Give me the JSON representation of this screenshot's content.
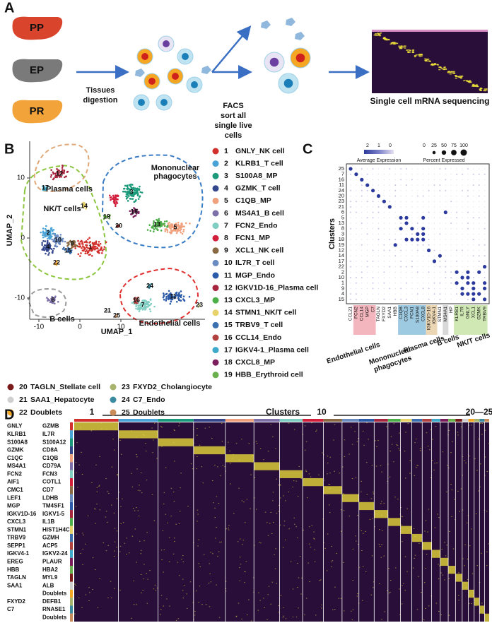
{
  "panel_a": {
    "label": "A",
    "organs": [
      "PP",
      "EP",
      "PR"
    ],
    "step1": [
      "Tissues",
      "digestion"
    ],
    "step2": [
      "FACS",
      "sort all",
      "single live",
      "cells"
    ],
    "step3": "Single cell mRNA sequencing"
  },
  "panel_b": {
    "label": "B",
    "xlabel": "UMAP_1",
    "ylabel": "UMAP_2",
    "xticks": [
      -10,
      0,
      10
    ],
    "yticks": [
      10,
      0,
      -10
    ],
    "regions": [
      [
        "Plasma cells"
      ],
      [
        "Mononuclear",
        "phagocytes"
      ],
      [
        "NK/T cells"
      ],
      [
        "B cells"
      ],
      [
        "Endothelial cells"
      ]
    ],
    "umap_labels": [
      12,
      17,
      14,
      2,
      10,
      4,
      15,
      9,
      22,
      1,
      3,
      18,
      13,
      5,
      19,
      20,
      6,
      16,
      24,
      7,
      11,
      21,
      25,
      23
    ],
    "legend": [
      {
        "number": 1,
        "name": "GNLY_NK cell",
        "color": "#d2302c"
      },
      {
        "number": 2,
        "name": "KLRB1_T cell",
        "color": "#4aa3d6"
      },
      {
        "number": 3,
        "name": "S100A8_MP",
        "color": "#1a9a7a"
      },
      {
        "number": 4,
        "name": "GZMK_T cell",
        "color": "#34478c"
      },
      {
        "number": 5,
        "name": "C1QB_MP",
        "color": "#f0a07c"
      },
      {
        "number": 6,
        "name": "MS4A1_B cell",
        "color": "#7d6fa8"
      },
      {
        "number": 7,
        "name": "FCN2_Endo",
        "color": "#80cdc2"
      },
      {
        "number": 8,
        "name": "FCN1_MP",
        "color": "#d21f3c"
      },
      {
        "number": 9,
        "name": "XCL1_NK cell",
        "color": "#8a6a44"
      },
      {
        "number": 10,
        "name": "IL7R_T cell",
        "color": "#6b8cc0"
      },
      {
        "number": 11,
        "name": "MGP_Endo",
        "color": "#2b5aa8"
      },
      {
        "number": 12,
        "name": "IGKV1D-16_Plasma cell",
        "color": "#a7253f"
      },
      {
        "number": 13,
        "name": "CXCL3_MP",
        "color": "#4daf4a"
      },
      {
        "number": 14,
        "name": "STMN1_NK/T cell",
        "color": "#e8d36a"
      },
      {
        "number": 15,
        "name": "TRBV9_T cell",
        "color": "#3c6fb0"
      },
      {
        "number": 16,
        "name": "CCL14_Endo",
        "color": "#b0413e"
      },
      {
        "number": 17,
        "name": "IGKV4-1_Plasma cell",
        "color": "#3fa9c9"
      },
      {
        "number": 18,
        "name": "CXCL8_MP",
        "color": "#7a1f5c"
      },
      {
        "number": 19,
        "name": "HBB_Erythroid cell",
        "color": "#6ab04c"
      },
      {
        "number": 20,
        "name": "TAGLN_Stellate cell",
        "color": "#7b1a1a"
      },
      {
        "number": 21,
        "name": "SAA1_Hepatocyte",
        "color": "#cfcfcf"
      },
      {
        "number": 22,
        "name": "Doublets",
        "color": "#f5a623"
      },
      {
        "number": 23,
        "name": "FXYD2_Cholangiocyte",
        "color": "#a8b36c"
      },
      {
        "number": 24,
        "name": "C7_Endo",
        "color": "#3a8aa0"
      },
      {
        "number": 25,
        "name": "Doublets",
        "color": "#c98b5a"
      }
    ]
  },
  "panel_c": {
    "label": "C",
    "avg_title": "Average Expression",
    "avg_ticks": [
      2,
      1,
      0
    ],
    "pct_title": "Percent Expressed",
    "pct_ticks": [
      0,
      25,
      50,
      75,
      100
    ],
    "ylabel": "Clusters",
    "clusters": [
      25,
      7,
      16,
      11,
      24,
      20,
      23,
      21,
      6,
      5,
      13,
      8,
      3,
      18,
      19,
      12,
      14,
      17,
      22,
      2,
      10,
      1,
      9,
      4,
      15
    ],
    "genes": [
      "CCL21",
      "FCN2",
      "CCL14",
      "MGP",
      "C7",
      "TAGLN",
      "FXYD2",
      "SAA1",
      "HBB",
      "C1QB",
      "CXCL3",
      "FCN1",
      "S100A8",
      "CXCL8",
      "IGKV1D-16",
      "IGKV4-1",
      "STMN1",
      "MS4A1",
      "HP",
      "KLRB1",
      "IL7R",
      "GNLY",
      "XCL1",
      "GZMK",
      "TRBV9"
    ],
    "groups": [
      [
        "Endothelial cells"
      ],
      [
        "Mononuclear",
        "phagocytes"
      ],
      [
        "Plasma cells"
      ],
      [
        "B cells"
      ],
      [
        "NK/T cells"
      ]
    ]
  },
  "panel_d": {
    "label": "D",
    "title": "Clusters",
    "marks": [
      "1",
      "10",
      "20—25"
    ],
    "rows": [
      {
        "left": "GNLY",
        "right": "GZMB"
      },
      {
        "left": "KLRB1",
        "right": "IL7R"
      },
      {
        "left": "S100A8",
        "right": "S100A12"
      },
      {
        "left": "GZMK",
        "right": "CD8A"
      },
      {
        "left": "C1QC",
        "right": "C1QB"
      },
      {
        "left": "MS4A1",
        "right": "CD79A"
      },
      {
        "left": "FCN2",
        "right": "FCN3"
      },
      {
        "left": "AIF1",
        "right": "COTL1"
      },
      {
        "left": "CMC1",
        "right": "CD7"
      },
      {
        "left": "LEF1",
        "right": "LDHB"
      },
      {
        "left": "MGP",
        "right": "TM4SF1"
      },
      {
        "left": "IGKV1D-16",
        "right": "IGKV1-5"
      },
      {
        "left": "CXCL3",
        "right": "IL1B"
      },
      {
        "left": "STMN1",
        "right": "HIST1H4C"
      },
      {
        "left": "TRBV9",
        "right": "GZMH"
      },
      {
        "left": "SEPP1",
        "right": "ACP5"
      },
      {
        "left": "IGKV4-1",
        "right": "IGKV2-24"
      },
      {
        "left": "EREG",
        "right": "PLAUR"
      },
      {
        "left": "HBB",
        "right": "HBA2"
      },
      {
        "left": "TAGLN",
        "right": "MYL9"
      },
      {
        "left": "SAA1",
        "right": "ALB"
      },
      {
        "right": "Doublets"
      },
      {
        "left": "FXYD2",
        "right": "DEFB1"
      },
      {
        "left": "C7",
        "right": "RNASE1"
      },
      {
        "right": "Doublets"
      }
    ]
  }
}
